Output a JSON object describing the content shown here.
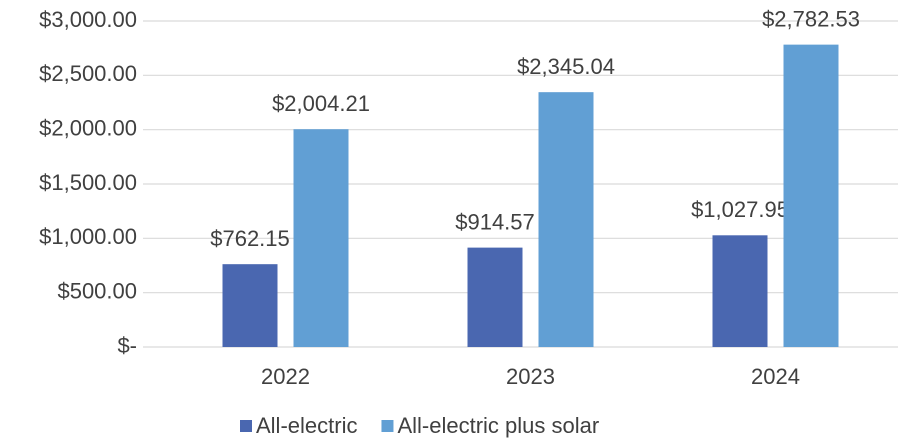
{
  "chart_data": {
    "type": "bar",
    "categories": [
      "2022",
      "2023",
      "2024"
    ],
    "series": [
      {
        "name": "All-electric",
        "color": "#4a67b0",
        "values": [
          762.15,
          914.57,
          1027.95
        ],
        "value_labels": [
          "$762.15",
          "$914.57",
          "$1,027.95"
        ]
      },
      {
        "name": "All-electric plus solar",
        "color": "#619fd4",
        "values": [
          2004.21,
          2345.04,
          2782.53
        ],
        "value_labels": [
          "$2,004.21",
          "$2,345.04",
          "$2,782.53"
        ]
      }
    ],
    "ylim": [
      0,
      3000
    ],
    "yticks": [
      {
        "value": 0,
        "label": "$-"
      },
      {
        "value": 500,
        "label": "$500.00"
      },
      {
        "value": 1000,
        "label": "$1,000.00"
      },
      {
        "value": 1500,
        "label": "$1,500.00"
      },
      {
        "value": 2000,
        "label": "$2,000.00"
      },
      {
        "value": 2500,
        "label": "$2,500.00"
      },
      {
        "value": 3000,
        "label": "$3,000.00"
      }
    ],
    "grid": true,
    "legend": "bottom"
  }
}
